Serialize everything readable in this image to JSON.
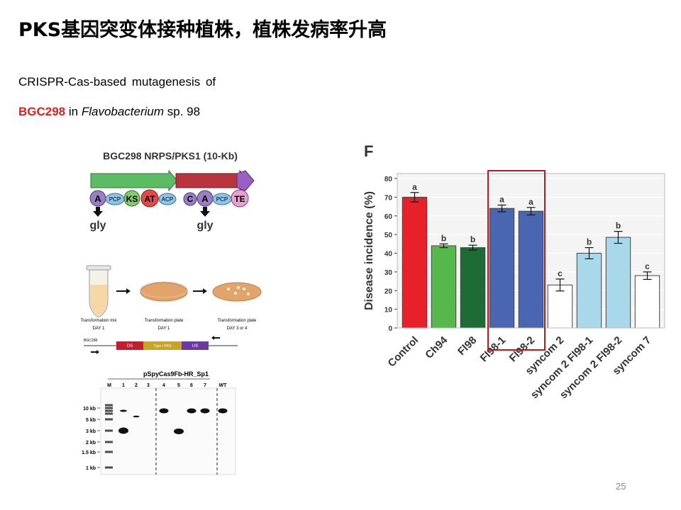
{
  "slide": {
    "title": "PKS基因突变体接种植株，植株发病率升高",
    "line1": "CRISPR-Cas-based mutagenesis of",
    "gene": "BGC298",
    "line2_in": " in ",
    "genus": "Flavobacterium",
    "line2_end": " sp. 98",
    "page_number": "25"
  },
  "gene_diagram": {
    "title": "BGC298 NRPS/PKS1 (10-Kb)",
    "domains": [
      "A",
      "PCP",
      "KS",
      "AT",
      "ACP",
      "C",
      "A",
      "PCP",
      "TE"
    ],
    "substrate_labels": [
      "gly",
      "gly"
    ],
    "colors": {
      "nrps_arrow": "#5dbb63",
      "pks_arrow": "#b8353d",
      "a_domain": "#9b7fc6",
      "pcp_domain": "#8ec3ea",
      "ks_domain": "#7fcb6e",
      "at_domain": "#e5484a",
      "te_domain": "#e7a3d0"
    }
  },
  "workflow": {
    "labels": [
      "Transformation mix",
      "Transformation plate",
      "Transformation plate"
    ],
    "days": [
      "DAY 1",
      "DAY 1",
      "DAY 3 or 4"
    ],
    "construct_name": "BGC298",
    "construct_parts": [
      "DS",
      "Type I PKS",
      "US"
    ]
  },
  "gel": {
    "title": "pSpyCas9Fb-HR_Sp1",
    "lanes": [
      "M",
      "1",
      "2",
      "3",
      "4",
      "5",
      "6",
      "7",
      "WT"
    ],
    "ladder": [
      "10 kb",
      "5 kb",
      "3 kb",
      "2 kb",
      "1.5 kb",
      "1 kb"
    ]
  },
  "chart": {
    "panel_label": "F",
    "colors": {
      "control": "#e8202a",
      "ch94": "#56b84b",
      "fl98": "#1d6b35",
      "mutant": "#4a66b0",
      "syncom": "#ffffff",
      "syncom_mutant": "#a8d8ea",
      "highlight_box": "#b01e23"
    }
  },
  "chart_data": {
    "type": "bar",
    "categories": [
      "Control",
      "Ch94",
      "Fl98",
      "Fl98-1",
      "Fl98-2",
      "syncom 2",
      "syncom 2 Fl98-1",
      "syncom 2 Fl98-2",
      "syncom 7"
    ],
    "values": [
      70,
      44,
      43,
      64,
      62.5,
      23,
      40,
      48.5,
      28
    ],
    "errors": [
      2.5,
      1,
      1.3,
      1.8,
      2,
      3.2,
      3,
      3.2,
      2
    ],
    "significance_letters": [
      "a",
      "b",
      "b",
      "a",
      "a",
      "c",
      "b",
      "b",
      "c"
    ],
    "ylabel": "Disease incidence (%)",
    "ylim": [
      0,
      80
    ],
    "yticks": [
      0,
      10,
      20,
      30,
      40,
      50,
      60,
      70,
      80
    ],
    "highlighted": [
      "Fl98-1",
      "Fl98-2"
    ]
  }
}
